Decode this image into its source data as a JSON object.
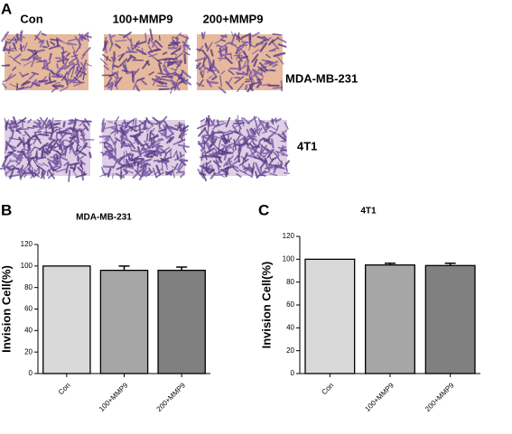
{
  "panel_a": {
    "label": "A",
    "columns": [
      "Con",
      "100+MMP9",
      "200+MMP9"
    ],
    "rows": [
      "MDA-MB-231",
      "4T1"
    ]
  },
  "chart_data": [
    {
      "type": "bar",
      "panel_label": "B",
      "title": "MDA-MB-231",
      "y_label": "Invision Cell(%)",
      "categories": [
        "Con",
        "100+MMP9",
        "200+MMP9"
      ],
      "values": [
        100,
        96,
        96
      ],
      "errors": [
        null,
        4,
        3
      ],
      "colors": [
        "#d9d9d9",
        "#a6a6a6",
        "#808080"
      ],
      "ylim": [
        0,
        120
      ],
      "yticks": [
        0,
        20,
        40,
        60,
        80,
        100,
        120
      ]
    },
    {
      "type": "bar",
      "panel_label": "C",
      "title": "4T1",
      "y_label": "Invision Cell(%)",
      "categories": [
        "Con",
        "100+MMP9",
        "200+MMP9"
      ],
      "values": [
        100,
        95,
        94.5
      ],
      "errors": [
        null,
        1.5,
        2
      ],
      "colors": [
        "#d9d9d9",
        "#a6a6a6",
        "#808080"
      ],
      "ylim": [
        0,
        120
      ],
      "yticks": [
        0,
        20,
        40,
        60,
        80,
        100,
        120
      ]
    }
  ]
}
